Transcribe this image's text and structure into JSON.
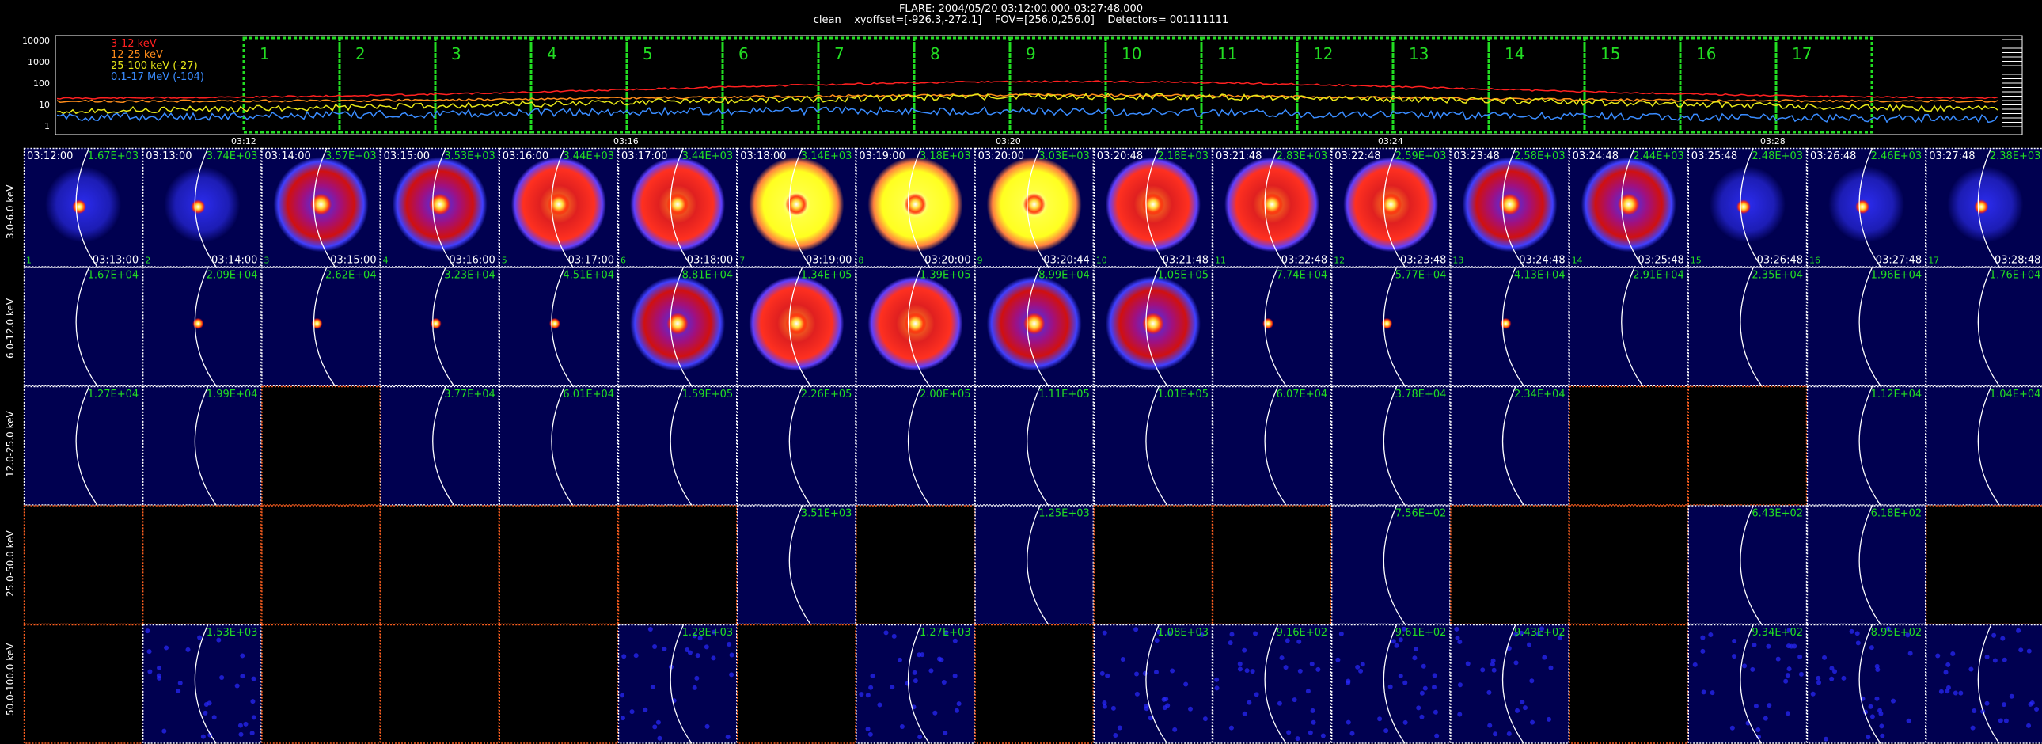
{
  "header": {
    "line1": "FLARE: 2004/05/20 03:12:00.000-03:27:48.000",
    "line2": "clean    xyoffset=[-926.3,-272.1]    FOV=[256.0,256.0]    Detectors= 001111111"
  },
  "lightcurve": {
    "legend": [
      {
        "label": "3-12 keV",
        "color": "#ff2020"
      },
      {
        "label": "12-25 keV",
        "color": "#ff8c1a"
      },
      {
        "label": "25-100 keV (-27)",
        "color": "#e8e818"
      },
      {
        "label": "0.1-17 MeV (-104)",
        "color": "#3a8cff"
      }
    ],
    "yticks": [
      "10000",
      "1000",
      "100",
      "10",
      "1"
    ],
    "xticks": [
      "03:12",
      "03:16",
      "03:20",
      "03:24",
      "03:28"
    ],
    "intervals": [
      "1",
      "2",
      "3",
      "4",
      "5",
      "6",
      "7",
      "8",
      "9",
      "10",
      "11",
      "12",
      "13",
      "14",
      "15",
      "16",
      "17"
    ],
    "interval_color": "#22dd22"
  },
  "bands": [
    {
      "label": "3.0-6.0 keV"
    },
    {
      "label": "6.0-12.0 keV"
    },
    {
      "label": "12.0-25.0 keV"
    },
    {
      "label": "25.0-50.0 keV"
    },
    {
      "label": "50.0-100.0 keV"
    }
  ],
  "columns": [
    {
      "n": "1",
      "start": "03:12:00",
      "end": "03:13:00"
    },
    {
      "n": "2",
      "start": "03:13:00",
      "end": "03:14:00"
    },
    {
      "n": "3",
      "start": "03:14:00",
      "end": "03:15:00"
    },
    {
      "n": "4",
      "start": "03:15:00",
      "end": "03:16:00"
    },
    {
      "n": "5",
      "start": "03:16:00",
      "end": "03:17:00"
    },
    {
      "n": "6",
      "start": "03:17:00",
      "end": "03:18:00"
    },
    {
      "n": "7",
      "start": "03:18:00",
      "end": "03:19:00"
    },
    {
      "n": "8",
      "start": "03:19:00",
      "end": "03:20:00"
    },
    {
      "n": "9",
      "start": "03:20:00",
      "end": "03:20:44"
    },
    {
      "n": "10",
      "start": "03:20:48",
      "end": "03:21:48"
    },
    {
      "n": "11",
      "start": "03:21:48",
      "end": "03:22:48"
    },
    {
      "n": "12",
      "start": "03:22:48",
      "end": "03:23:48"
    },
    {
      "n": "13",
      "start": "03:23:48",
      "end": "03:24:48"
    },
    {
      "n": "14",
      "start": "03:24:48",
      "end": "03:25:48"
    },
    {
      "n": "15",
      "start": "03:25:48",
      "end": "03:26:48"
    },
    {
      "n": "16",
      "start": "03:26:48",
      "end": "03:27:48"
    },
    {
      "n": "17",
      "start": "03:27:48",
      "end": "03:28:48"
    }
  ],
  "cells": [
    [
      "1.67E+03",
      "3.74E+03",
      "3.57E+03",
      "3.53E+03",
      "3.44E+03",
      "3.44E+03",
      "3.14E+03",
      "3.18E+03",
      "3.03E+03",
      "2.18E+03",
      "2.83E+03",
      "2.59E+03",
      "2.58E+03",
      "2.44E+03",
      "2.48E+03",
      "2.46E+03",
      "2.38E+03"
    ],
    [
      "1.67E+04",
      "2.09E+04",
      "2.62E+04",
      "3.23E+04",
      "4.51E+04",
      "8.81E+04",
      "1.34E+05",
      "1.39E+05",
      "8.99E+04",
      "1.05E+05",
      "7.74E+04",
      "5.77E+04",
      "4.13E+04",
      "2.91E+04",
      "2.35E+04",
      "1.96E+04",
      "1.76E+04"
    ],
    [
      "1.27E+04",
      "1.99E+04",
      "",
      "3.77E+04",
      "6.01E+04",
      "1.59E+05",
      "2.26E+05",
      "2.00E+05",
      "1.11E+05",
      "1.01E+05",
      "6.07E+04",
      "3.78E+04",
      "2.34E+04",
      "",
      "",
      "1.12E+04",
      "1.04E+04"
    ],
    [
      "",
      "",
      "",
      "",
      "",
      "",
      "3.51E+03",
      "",
      "1.25E+03",
      "",
      "",
      "7.56E+02",
      "",
      "",
      "6.43E+02",
      "6.18E+02",
      ""
    ],
    [
      "",
      "1.53E+03",
      "",
      "",
      "",
      "1.28E+03",
      "",
      "1.27E+03",
      "",
      "1.08E+03",
      "9.16E+02",
      "9.61E+02",
      "9.43E+02",
      "",
      "9.34E+02",
      "8.95E+02",
      ""
    ]
  ],
  "images": [
    [
      "blob",
      "blob",
      "ring",
      "ring",
      "ring",
      "ring",
      "ring",
      "ring",
      "ring",
      "ring",
      "ring",
      "ring",
      "ring",
      "ring",
      "blob",
      "blob",
      "blob"
    ],
    [
      "empty",
      "dot",
      "dot",
      "dot",
      "dot",
      "ring",
      "ring",
      "ring",
      "ring",
      "ring",
      "dot",
      "dot",
      "dot",
      "empty",
      "empty",
      "empty",
      "empty"
    ],
    [
      "empty",
      "empty",
      "black",
      "empty",
      "empty",
      "empty",
      "empty",
      "empty",
      "empty",
      "empty",
      "empty",
      "empty",
      "empty",
      "black",
      "black",
      "empty",
      "empty"
    ],
    [
      "black",
      "black",
      "black",
      "black",
      "black",
      "black",
      "empty",
      "black",
      "empty",
      "black",
      "black",
      "empty",
      "black",
      "black",
      "empty",
      "empty",
      "black"
    ],
    [
      "black",
      "noise",
      "black",
      "black",
      "black",
      "noise",
      "black",
      "noise",
      "black",
      "noise",
      "noise",
      "noise",
      "noise",
      "black",
      "noise",
      "noise",
      "noise"
    ]
  ],
  "intensity": [
    [
      0.25,
      0.3,
      0.35,
      0.5,
      0.55,
      0.75,
      0.95,
      0.97,
      0.9,
      0.7,
      0.7,
      0.55,
      0.45,
      0.35,
      0.25,
      0.2,
      0.2
    ],
    [
      0,
      0,
      0,
      0,
      0,
      0.45,
      0.55,
      0.55,
      0.35,
      0.2,
      0,
      0,
      0,
      0,
      0,
      0,
      0
    ],
    [
      0,
      0,
      0,
      0,
      0,
      0,
      0,
      0,
      0,
      0,
      0,
      0,
      0,
      0,
      0,
      0,
      0
    ],
    [
      0,
      0,
      0,
      0,
      0,
      0,
      0,
      0,
      0,
      0,
      0,
      0,
      0,
      0,
      0,
      0,
      0
    ],
    [
      0,
      0,
      0,
      0,
      0,
      0,
      0,
      0,
      0,
      0,
      0,
      0,
      0,
      0,
      0,
      0,
      0
    ]
  ]
}
